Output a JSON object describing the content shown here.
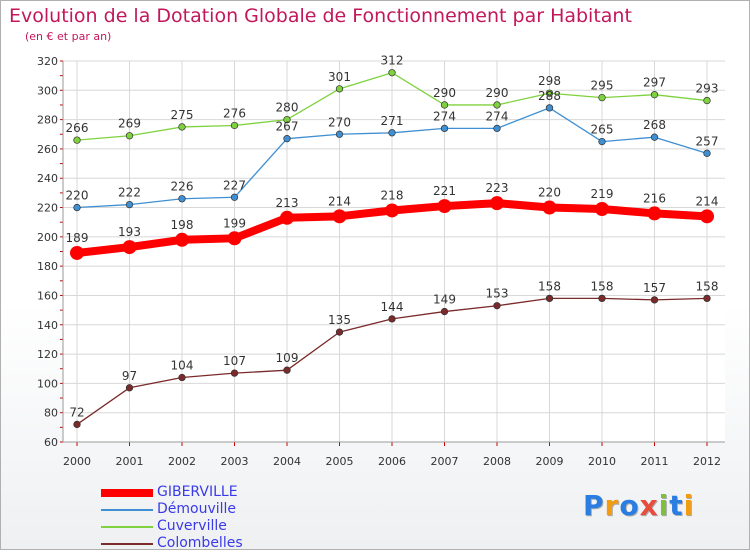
{
  "chart_data": {
    "type": "line",
    "title": "Evolution de la Dotation Globale de Fonctionnement par Habitant",
    "subtitle": "(en € et par an)",
    "x": [
      "2000",
      "2001",
      "2002",
      "2003",
      "2004",
      "2005",
      "2006",
      "2007",
      "2008",
      "2009",
      "2010",
      "2011",
      "2012"
    ],
    "ylim": [
      60,
      320
    ],
    "yticks": [
      60,
      80,
      100,
      120,
      140,
      160,
      180,
      200,
      220,
      240,
      260,
      280,
      300,
      320
    ],
    "grid": true,
    "legend_position": "bottom-left",
    "series": [
      {
        "name": "GIBERVILLE",
        "color": "#ff0000",
        "values": [
          189,
          193,
          198,
          199,
          213,
          214,
          218,
          221,
          223,
          220,
          219,
          216,
          214
        ]
      },
      {
        "name": "Démouville",
        "color": "#3f8fd2",
        "values": [
          220,
          222,
          226,
          227,
          267,
          270,
          271,
          274,
          274,
          288,
          265,
          268,
          257
        ]
      },
      {
        "name": "Cuverville",
        "color": "#7fd23f",
        "values": [
          266,
          269,
          275,
          276,
          280,
          301,
          312,
          290,
          290,
          298,
          295,
          297,
          293
        ]
      },
      {
        "name": "Colombelles",
        "color": "#7a2a2a",
        "values": [
          72,
          97,
          104,
          107,
          109,
          135,
          144,
          149,
          153,
          158,
          158,
          157,
          158
        ]
      }
    ]
  },
  "branding": {
    "logo_text": "Proxiti",
    "letter_colors": [
      "#2a7de1",
      "#f39c12",
      "#2a7de1",
      "#e74c3c",
      "#7fbf3f",
      "#2a7de1",
      "#f39c12"
    ]
  }
}
